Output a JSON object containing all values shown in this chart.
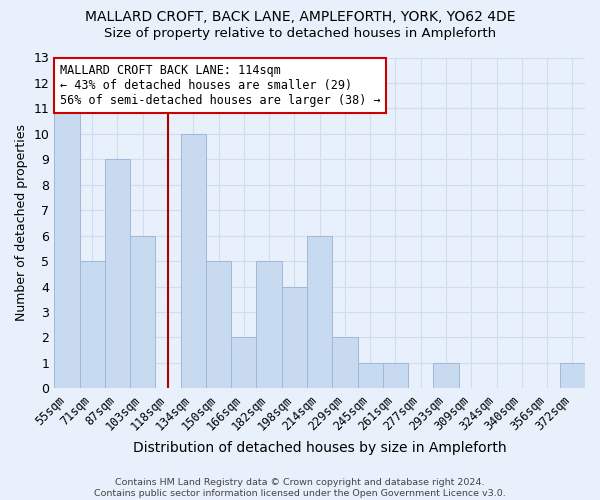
{
  "title1": "MALLARD CROFT, BACK LANE, AMPLEFORTH, YORK, YO62 4DE",
  "title2": "Size of property relative to detached houses in Ampleforth",
  "xlabel": "Distribution of detached houses by size in Ampleforth",
  "ylabel": "Number of detached properties",
  "categories": [
    "55sqm",
    "71sqm",
    "87sqm",
    "103sqm",
    "118sqm",
    "134sqm",
    "150sqm",
    "166sqm",
    "182sqm",
    "198sqm",
    "214sqm",
    "229sqm",
    "245sqm",
    "261sqm",
    "277sqm",
    "293sqm",
    "309sqm",
    "324sqm",
    "340sqm",
    "356sqm",
    "372sqm"
  ],
  "values": [
    11,
    5,
    9,
    6,
    0,
    10,
    5,
    2,
    5,
    4,
    6,
    2,
    1,
    1,
    0,
    1,
    0,
    0,
    0,
    0,
    1
  ],
  "bar_color": "#c8daf0",
  "bar_edge_color": "#a0b8d8",
  "bar_linewidth": 0.7,
  "vline_x_idx": 4,
  "vline_color": "#aa0000",
  "vline_linewidth": 1.5,
  "annotation_text": "MALLARD CROFT BACK LANE: 114sqm\n← 43% of detached houses are smaller (29)\n56% of semi-detached houses are larger (38) →",
  "annotation_box_color": "white",
  "annotation_box_edge": "#cc0000",
  "ylim": [
    0,
    13
  ],
  "yticks": [
    0,
    1,
    2,
    3,
    4,
    5,
    6,
    7,
    8,
    9,
    10,
    11,
    12,
    13
  ],
  "bg_color": "#e8f0fb",
  "grid_color": "#d0ddf0",
  "footer1": "Contains HM Land Registry data © Crown copyright and database right 2024.",
  "footer2": "Contains public sector information licensed under the Open Government Licence v3.0."
}
